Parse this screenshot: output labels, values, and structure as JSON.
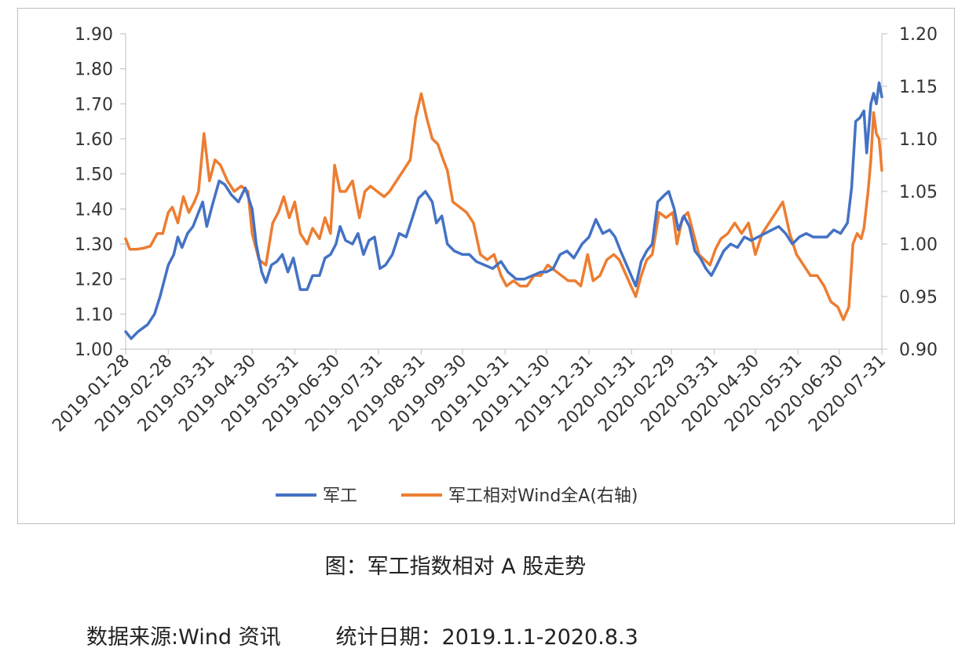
{
  "caption": "图：军工指数相对 A 股走势",
  "source": {
    "text": "数据来源:Wind 资讯",
    "stats_date": "统计日期：2019.1.1-2020.8.3"
  },
  "colors": {
    "series1": "#4472C4",
    "series2": "#ED7D31",
    "axis": "#bfbfbf"
  },
  "chart_data": {
    "type": "line",
    "title": "",
    "legend_position": "bottom",
    "grid": false,
    "x_ticks": [
      "2019-01-28",
      "2019-02-28",
      "2019-03-31",
      "2019-04-30",
      "2019-05-31",
      "2019-06-30",
      "2019-07-31",
      "2019-08-31",
      "2019-09-30",
      "2019-10-31",
      "2019-11-30",
      "2019-12-31",
      "2020-01-31",
      "2020-02-29",
      "2020-03-31",
      "2020-04-30",
      "2020-05-31",
      "2020-06-30",
      "2020-07-31"
    ],
    "y_left": {
      "min": 1.0,
      "max": 1.9,
      "ticks": [
        "1.00",
        "1.10",
        "1.20",
        "1.30",
        "1.40",
        "1.50",
        "1.60",
        "1.70",
        "1.80",
        "1.90"
      ]
    },
    "y_right": {
      "min": 0.9,
      "max": 1.2,
      "ticks": [
        "0.90",
        "0.95",
        "1.00",
        "1.05",
        "1.10",
        "1.15",
        "1.20"
      ]
    },
    "series": [
      {
        "name": "军工",
        "axis": "left",
        "points": [
          [
            "2019-01-28",
            1.05
          ],
          [
            "2019-02-01",
            1.03
          ],
          [
            "2019-02-06",
            1.05
          ],
          [
            "2019-02-13",
            1.07
          ],
          [
            "2019-02-18",
            1.1
          ],
          [
            "2019-02-22",
            1.15
          ],
          [
            "2019-02-26",
            1.21
          ],
          [
            "2019-02-28",
            1.24
          ],
          [
            "2019-03-04",
            1.27
          ],
          [
            "2019-03-07",
            1.32
          ],
          [
            "2019-03-10",
            1.29
          ],
          [
            "2019-03-14",
            1.33
          ],
          [
            "2019-03-18",
            1.35
          ],
          [
            "2019-03-22",
            1.39
          ],
          [
            "2019-03-25",
            1.42
          ],
          [
            "2019-03-28",
            1.35
          ],
          [
            "2019-04-01",
            1.41
          ],
          [
            "2019-04-06",
            1.48
          ],
          [
            "2019-04-10",
            1.47
          ],
          [
            "2019-04-15",
            1.44
          ],
          [
            "2019-04-20",
            1.42
          ],
          [
            "2019-04-25",
            1.46
          ],
          [
            "2019-04-30",
            1.4
          ],
          [
            "2019-05-03",
            1.3
          ],
          [
            "2019-05-07",
            1.22
          ],
          [
            "2019-05-10",
            1.19
          ],
          [
            "2019-05-14",
            1.24
          ],
          [
            "2019-05-18",
            1.25
          ],
          [
            "2019-05-22",
            1.27
          ],
          [
            "2019-05-26",
            1.22
          ],
          [
            "2019-05-30",
            1.26
          ],
          [
            "2019-06-04",
            1.17
          ],
          [
            "2019-06-09",
            1.17
          ],
          [
            "2019-06-13",
            1.21
          ],
          [
            "2019-06-18",
            1.21
          ],
          [
            "2019-06-22",
            1.26
          ],
          [
            "2019-06-26",
            1.27
          ],
          [
            "2019-06-30",
            1.3
          ],
          [
            "2019-07-03",
            1.35
          ],
          [
            "2019-07-07",
            1.31
          ],
          [
            "2019-07-12",
            1.3
          ],
          [
            "2019-07-16",
            1.33
          ],
          [
            "2019-07-20",
            1.27
          ],
          [
            "2019-07-24",
            1.31
          ],
          [
            "2019-07-28",
            1.32
          ],
          [
            "2019-08-01",
            1.23
          ],
          [
            "2019-08-05",
            1.24
          ],
          [
            "2019-08-10",
            1.27
          ],
          [
            "2019-08-15",
            1.33
          ],
          [
            "2019-08-20",
            1.32
          ],
          [
            "2019-08-25",
            1.38
          ],
          [
            "2019-08-29",
            1.43
          ],
          [
            "2019-09-03",
            1.45
          ],
          [
            "2019-09-08",
            1.42
          ],
          [
            "2019-09-11",
            1.36
          ],
          [
            "2019-09-15",
            1.38
          ],
          [
            "2019-09-19",
            1.3
          ],
          [
            "2019-09-24",
            1.28
          ],
          [
            "2019-09-30",
            1.27
          ],
          [
            "2019-10-05",
            1.27
          ],
          [
            "2019-10-10",
            1.25
          ],
          [
            "2019-10-16",
            1.24
          ],
          [
            "2019-10-22",
            1.23
          ],
          [
            "2019-10-28",
            1.25
          ],
          [
            "2019-11-02",
            1.22
          ],
          [
            "2019-11-08",
            1.2
          ],
          [
            "2019-11-14",
            1.2
          ],
          [
            "2019-11-20",
            1.21
          ],
          [
            "2019-11-26",
            1.22
          ],
          [
            "2019-11-30",
            1.22
          ],
          [
            "2019-12-05",
            1.23
          ],
          [
            "2019-12-10",
            1.27
          ],
          [
            "2019-12-15",
            1.28
          ],
          [
            "2019-12-20",
            1.26
          ],
          [
            "2019-12-26",
            1.3
          ],
          [
            "2019-12-31",
            1.32
          ],
          [
            "2020-01-05",
            1.37
          ],
          [
            "2020-01-10",
            1.33
          ],
          [
            "2020-01-15",
            1.34
          ],
          [
            "2020-01-19",
            1.32
          ],
          [
            "2020-01-23",
            1.28
          ],
          [
            "2020-02-03",
            1.18
          ],
          [
            "2020-02-07",
            1.25
          ],
          [
            "2020-02-11",
            1.28
          ],
          [
            "2020-02-15",
            1.3
          ],
          [
            "2020-02-19",
            1.42
          ],
          [
            "2020-02-24",
            1.44
          ],
          [
            "2020-02-27",
            1.45
          ],
          [
            "2020-03-02",
            1.4
          ],
          [
            "2020-03-05",
            1.34
          ],
          [
            "2020-03-09",
            1.38
          ],
          [
            "2020-03-13",
            1.35
          ],
          [
            "2020-03-17",
            1.28
          ],
          [
            "2020-03-21",
            1.26
          ],
          [
            "2020-03-25",
            1.23
          ],
          [
            "2020-03-29",
            1.21
          ],
          [
            "2020-04-02",
            1.24
          ],
          [
            "2020-04-07",
            1.28
          ],
          [
            "2020-04-12",
            1.3
          ],
          [
            "2020-04-17",
            1.29
          ],
          [
            "2020-04-22",
            1.32
          ],
          [
            "2020-04-27",
            1.31
          ],
          [
            "2020-05-02",
            1.32
          ],
          [
            "2020-05-07",
            1.33
          ],
          [
            "2020-05-12",
            1.34
          ],
          [
            "2020-05-17",
            1.35
          ],
          [
            "2020-05-22",
            1.33
          ],
          [
            "2020-05-27",
            1.3
          ],
          [
            "2020-06-01",
            1.32
          ],
          [
            "2020-06-06",
            1.33
          ],
          [
            "2020-06-11",
            1.32
          ],
          [
            "2020-06-16",
            1.32
          ],
          [
            "2020-06-21",
            1.32
          ],
          [
            "2020-06-26",
            1.34
          ],
          [
            "2020-07-01",
            1.33
          ],
          [
            "2020-07-06",
            1.36
          ],
          [
            "2020-07-09",
            1.46
          ],
          [
            "2020-07-12",
            1.65
          ],
          [
            "2020-07-15",
            1.66
          ],
          [
            "2020-07-18",
            1.68
          ],
          [
            "2020-07-20",
            1.56
          ],
          [
            "2020-07-23",
            1.7
          ],
          [
            "2020-07-25",
            1.73
          ],
          [
            "2020-07-27",
            1.7
          ],
          [
            "2020-07-29",
            1.76
          ],
          [
            "2020-07-31",
            1.72
          ]
        ]
      },
      {
        "name": "军工相对Wind全A(右轴)",
        "axis": "right",
        "points": [
          [
            "2019-01-28",
            1.005
          ],
          [
            "2019-01-31",
            0.995
          ],
          [
            "2019-02-05",
            0.995
          ],
          [
            "2019-02-10",
            0.996
          ],
          [
            "2019-02-15",
            0.998
          ],
          [
            "2019-02-20",
            1.01
          ],
          [
            "2019-02-24",
            1.01
          ],
          [
            "2019-02-28",
            1.03
          ],
          [
            "2019-03-03",
            1.035
          ],
          [
            "2019-03-07",
            1.02
          ],
          [
            "2019-03-11",
            1.045
          ],
          [
            "2019-03-15",
            1.03
          ],
          [
            "2019-03-19",
            1.04
          ],
          [
            "2019-03-22",
            1.05
          ],
          [
            "2019-03-26",
            1.105
          ],
          [
            "2019-03-30",
            1.06
          ],
          [
            "2019-04-03",
            1.08
          ],
          [
            "2019-04-07",
            1.075
          ],
          [
            "2019-04-12",
            1.06
          ],
          [
            "2019-04-17",
            1.05
          ],
          [
            "2019-04-22",
            1.055
          ],
          [
            "2019-04-27",
            1.05
          ],
          [
            "2019-04-30",
            1.01
          ],
          [
            "2019-05-05",
            0.985
          ],
          [
            "2019-05-10",
            0.98
          ],
          [
            "2019-05-15",
            1.02
          ],
          [
            "2019-05-19",
            1.03
          ],
          [
            "2019-05-23",
            1.045
          ],
          [
            "2019-05-27",
            1.025
          ],
          [
            "2019-05-31",
            1.04
          ],
          [
            "2019-06-04",
            1.01
          ],
          [
            "2019-06-09",
            1.0
          ],
          [
            "2019-06-13",
            1.015
          ],
          [
            "2019-06-18",
            1.005
          ],
          [
            "2019-06-22",
            1.025
          ],
          [
            "2019-06-26",
            1.01
          ],
          [
            "2019-06-29",
            1.075
          ],
          [
            "2019-07-03",
            1.05
          ],
          [
            "2019-07-07",
            1.05
          ],
          [
            "2019-07-12",
            1.06
          ],
          [
            "2019-07-17",
            1.025
          ],
          [
            "2019-07-21",
            1.05
          ],
          [
            "2019-07-25",
            1.055
          ],
          [
            "2019-07-30",
            1.05
          ],
          [
            "2019-08-04",
            1.045
          ],
          [
            "2019-08-08",
            1.05
          ],
          [
            "2019-08-13",
            1.06
          ],
          [
            "2019-08-18",
            1.07
          ],
          [
            "2019-08-23",
            1.08
          ],
          [
            "2019-08-27",
            1.12
          ],
          [
            "2019-08-31",
            1.143
          ],
          [
            "2019-09-04",
            1.12
          ],
          [
            "2019-09-08",
            1.1
          ],
          [
            "2019-09-12",
            1.095
          ],
          [
            "2019-09-16",
            1.08
          ],
          [
            "2019-09-19",
            1.07
          ],
          [
            "2019-09-23",
            1.04
          ],
          [
            "2019-09-28",
            1.035
          ],
          [
            "2019-10-03",
            1.03
          ],
          [
            "2019-10-08",
            1.02
          ],
          [
            "2019-10-13",
            0.99
          ],
          [
            "2019-10-18",
            0.985
          ],
          [
            "2019-10-23",
            0.99
          ],
          [
            "2019-10-28",
            0.97
          ],
          [
            "2019-11-01",
            0.96
          ],
          [
            "2019-11-06",
            0.965
          ],
          [
            "2019-11-11",
            0.96
          ],
          [
            "2019-11-16",
            0.96
          ],
          [
            "2019-11-21",
            0.97
          ],
          [
            "2019-11-26",
            0.97
          ],
          [
            "2019-12-01",
            0.98
          ],
          [
            "2019-12-06",
            0.975
          ],
          [
            "2019-12-11",
            0.97
          ],
          [
            "2019-12-16",
            0.965
          ],
          [
            "2019-12-21",
            0.965
          ],
          [
            "2019-12-25",
            0.96
          ],
          [
            "2019-12-30",
            0.99
          ],
          [
            "2020-01-03",
            0.965
          ],
          [
            "2020-01-08",
            0.97
          ],
          [
            "2020-01-13",
            0.985
          ],
          [
            "2020-01-18",
            0.99
          ],
          [
            "2020-01-22",
            0.985
          ],
          [
            "2020-02-03",
            0.95
          ],
          [
            "2020-02-07",
            0.97
          ],
          [
            "2020-02-11",
            0.985
          ],
          [
            "2020-02-15",
            0.99
          ],
          [
            "2020-02-20",
            1.03
          ],
          [
            "2020-02-25",
            1.025
          ],
          [
            "2020-03-01",
            1.03
          ],
          [
            "2020-03-04",
            1.0
          ],
          [
            "2020-03-08",
            1.025
          ],
          [
            "2020-03-12",
            1.03
          ],
          [
            "2020-03-16",
            1.01
          ],
          [
            "2020-03-20",
            0.99
          ],
          [
            "2020-03-24",
            0.985
          ],
          [
            "2020-03-28",
            0.98
          ],
          [
            "2020-04-01",
            0.995
          ],
          [
            "2020-04-05",
            1.005
          ],
          [
            "2020-04-10",
            1.01
          ],
          [
            "2020-04-15",
            1.02
          ],
          [
            "2020-04-20",
            1.01
          ],
          [
            "2020-04-25",
            1.02
          ],
          [
            "2020-04-30",
            0.99
          ],
          [
            "2020-05-05",
            1.01
          ],
          [
            "2020-05-10",
            1.02
          ],
          [
            "2020-05-15",
            1.03
          ],
          [
            "2020-05-20",
            1.04
          ],
          [
            "2020-05-25",
            1.01
          ],
          [
            "2020-05-30",
            0.99
          ],
          [
            "2020-06-04",
            0.98
          ],
          [
            "2020-06-09",
            0.97
          ],
          [
            "2020-06-14",
            0.97
          ],
          [
            "2020-06-19",
            0.96
          ],
          [
            "2020-06-24",
            0.945
          ],
          [
            "2020-06-29",
            0.94
          ],
          [
            "2020-07-03",
            0.928
          ],
          [
            "2020-07-07",
            0.94
          ],
          [
            "2020-07-10",
            1.0
          ],
          [
            "2020-07-13",
            1.01
          ],
          [
            "2020-07-16",
            1.005
          ],
          [
            "2020-07-18",
            1.015
          ],
          [
            "2020-07-21",
            1.05
          ],
          [
            "2020-07-23",
            1.08
          ],
          [
            "2020-07-25",
            1.125
          ],
          [
            "2020-07-27",
            1.105
          ],
          [
            "2020-07-29",
            1.1
          ],
          [
            "2020-07-31",
            1.07
          ]
        ]
      }
    ]
  }
}
